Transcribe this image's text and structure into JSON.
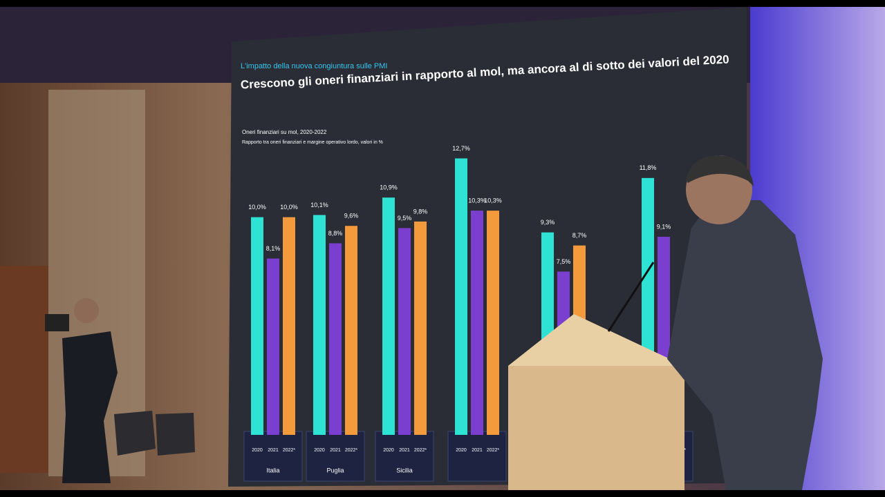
{
  "chart_data": {
    "type": "grouped-bar",
    "kicker": "L'impatto della nuova congiuntura sulle PMI",
    "title": "Crescono gli oneri finanziari in rapporto al mol, ma ancora al di sotto dei valori del 2020",
    "subtitle": "Oneri finanziari su mol, 2020-2022",
    "note": "Rapporto tra oneri finanziari e margine operativo lordo, valori in %",
    "categories": [
      "Italia",
      "Puglia",
      "Sicilia",
      null,
      null,
      null
    ],
    "series": [
      {
        "name": "2020",
        "color": "#2ee3d3",
        "values": [
          10.0,
          10.1,
          10.9,
          12.7,
          9.3,
          11.8
        ],
        "value_labels": [
          "10,0%",
          "10,1%",
          "10,9%",
          "12,7%",
          "9,3%",
          "11,8%"
        ]
      },
      {
        "name": "2021",
        "color": "#7a3fcf",
        "values": [
          8.1,
          8.8,
          9.5,
          10.3,
          7.5,
          9.1
        ],
        "value_labels": [
          "8,1%",
          "8,8%",
          "9,5%",
          "10,3%",
          "7,5%",
          "9,1%"
        ]
      },
      {
        "name": "2022*",
        "color": "#f39a3c",
        "values": [
          10.0,
          9.6,
          9.8,
          10.3,
          8.7,
          null
        ],
        "value_labels": [
          "10,0%",
          "9,6%",
          "9,8%",
          "10,3%",
          "8,7%",
          null
        ]
      }
    ],
    "ylim": [
      0,
      13
    ]
  }
}
